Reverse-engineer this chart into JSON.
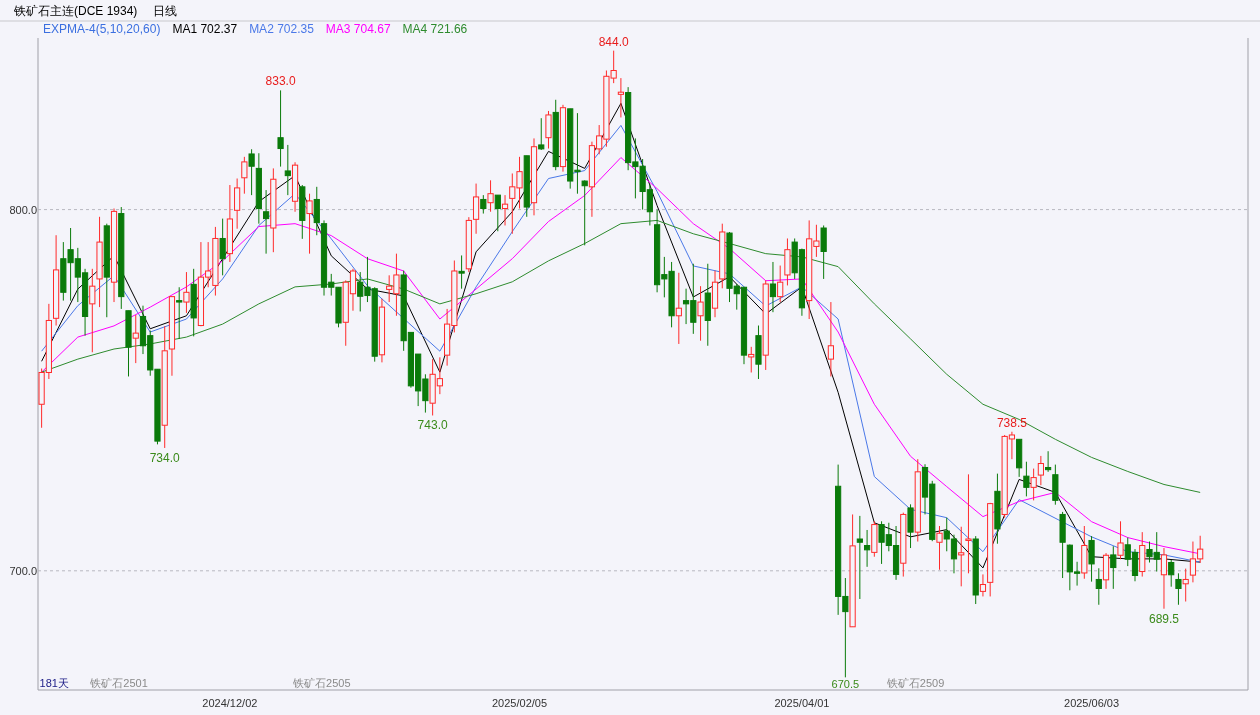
{
  "chart_data": {
    "type": "candlestick",
    "title": "铁矿石主连(DCE 1934)",
    "subtitle": "日线",
    "legend_title": "EXPMA-4(5,10,20,60)",
    "legend": "top left",
    "grid": "y",
    "ylim": [
      667,
      847.5
    ],
    "yticks": [
      {
        "value": 700,
        "label": "700.0"
      },
      {
        "value": 800,
        "label": "800.0"
      }
    ],
    "categories": [
      null,
      null,
      null,
      null,
      null,
      null,
      null,
      null,
      null,
      null,
      null,
      null,
      null,
      null,
      null,
      null,
      null,
      null,
      null,
      null,
      null,
      null,
      null,
      null,
      null,
      null,
      "2024/12/02",
      null,
      null,
      null,
      null,
      null,
      null,
      null,
      null,
      null,
      null,
      null,
      null,
      null,
      null,
      null,
      null,
      null,
      null,
      null,
      null,
      null,
      null,
      null,
      null,
      null,
      null,
      null,
      null,
      null,
      null,
      null,
      null,
      null,
      null,
      null,
      null,
      null,
      null,
      null,
      "2025/02/05",
      null,
      null,
      null,
      null,
      null,
      null,
      null,
      null,
      null,
      null,
      null,
      null,
      null,
      null,
      null,
      null,
      null,
      null,
      null,
      null,
      null,
      null,
      null,
      null,
      null,
      null,
      null,
      null,
      null,
      null,
      null,
      null,
      null,
      null,
      null,
      null,
      null,
      null,
      "2025/04/01",
      null,
      null,
      null,
      null,
      null,
      null,
      null,
      null,
      null,
      null,
      null,
      null,
      null,
      null,
      null,
      null,
      null,
      null,
      null,
      null,
      null,
      null,
      null,
      null,
      null,
      null,
      null,
      null,
      null,
      null,
      null,
      null,
      null,
      null,
      null,
      null,
      null,
      null,
      null,
      "2025/06/03",
      null,
      null,
      null,
      null,
      null,
      null,
      null,
      null,
      null,
      null,
      null,
      null,
      null,
      null,
      null
    ],
    "ohlc": [
      [
        746.1,
        756,
        739.6,
        754.9
      ],
      [
        754.9,
        773.9,
        753.1,
        769.3
      ],
      [
        769.9,
        792.9,
        767.9,
        783.3
      ],
      [
        786.4,
        791,
        774.8,
        777.1
      ],
      [
        788.9,
        794.9,
        774.8,
        785.3
      ],
      [
        786.4,
        789.4,
        774.4,
        781.3
      ],
      [
        782.5,
        783.6,
        765.1,
        770.4
      ],
      [
        773.9,
        783.6,
        760.5,
        778.8
      ],
      [
        780.8,
        798,
        773,
        791
      ],
      [
        795.5,
        796.1,
        770.2,
        781.3
      ],
      [
        779.9,
        800.3,
        774.4,
        799.5
      ],
      [
        798.9,
        800.7,
        772.5,
        775.9
      ],
      [
        772,
        772,
        753.8,
        761.9
      ],
      [
        764.4,
        770.8,
        757.5,
        765.8
      ],
      [
        770.4,
        773.4,
        760,
        762.3
      ],
      [
        765.1,
        766.5,
        754,
        755.6
      ],
      [
        755.8,
        755.8,
        735,
        735.9
      ],
      [
        740.3,
        767.7,
        734,
        760.9
      ],
      [
        761.4,
        775.9,
        754,
        775.9
      ],
      [
        774.8,
        778.5,
        764.2,
        774.4
      ],
      [
        774.4,
        782.7,
        771.4,
        777.1
      ],
      [
        779.3,
        783.6,
        764.9,
        770
      ],
      [
        767.9,
        791,
        767.7,
        781.3
      ],
      [
        781.3,
        791,
        778.5,
        783
      ],
      [
        779,
        795.2,
        776.2,
        792
      ],
      [
        792,
        797.5,
        781.8,
        786.4
      ],
      [
        787.8,
        806.8,
        785.5,
        797.4
      ],
      [
        799.8,
        808.6,
        794.7,
        806
      ],
      [
        808.8,
        814.6,
        804.4,
        813.2
      ],
      [
        815.4,
        816.7,
        804,
        812
      ],
      [
        811.4,
        815.6,
        796.1,
        800.3
      ],
      [
        799.4,
        805.4,
        787.8,
        797.5
      ],
      [
        794.9,
        811.4,
        788.2,
        808.4
      ],
      [
        819.9,
        833,
        811.9,
        816.9
      ],
      [
        810.7,
        817.9,
        804,
        809.4
      ],
      [
        802.3,
        813.1,
        799.4,
        812.3
      ],
      [
        806.3,
        806.8,
        791.9,
        797
      ],
      [
        798.9,
        804.4,
        787.8,
        802.4
      ],
      [
        802.8,
        806.3,
        792.9,
        796.4
      ],
      [
        796.1,
        797,
        776.2,
        778.5
      ],
      [
        779.9,
        782.2,
        776.2,
        778.5
      ],
      [
        778.5,
        778.5,
        767.4,
        768.6
      ],
      [
        768.8,
        780.4,
        762.3,
        779.9
      ],
      [
        776.7,
        783.6,
        772,
        783
      ],
      [
        779.9,
        782.7,
        771.8,
        776
      ],
      [
        778.5,
        786.9,
        774.4,
        776.2
      ],
      [
        778.1,
        778.5,
        757.9,
        759.4
      ],
      [
        759.8,
        775.3,
        757.7,
        773
      ],
      [
        777.9,
        781.8,
        774.4,
        778.8
      ],
      [
        776.7,
        787.8,
        770.6,
        781.9
      ],
      [
        781.9,
        783.1,
        760.9,
        763.7
      ],
      [
        766,
        766,
        750.7,
        751.2
      ],
      [
        760,
        760,
        745.6,
        749.8
      ],
      [
        753.1,
        754.4,
        743.8,
        747.1
      ],
      [
        746.4,
        758.6,
        743,
        754.4
      ],
      [
        751.2,
        759.1,
        748.9,
        753.2
      ],
      [
        759.7,
        772.5,
        756.8,
        768.3
      ],
      [
        767.9,
        785.9,
        766,
        783
      ],
      [
        782.9,
        787.3,
        778.1,
        782.4
      ],
      [
        783.6,
        797.9,
        782.7,
        797
      ],
      [
        797.3,
        807.2,
        793.3,
        803.5
      ],
      [
        802.8,
        804,
        798.9,
        800.3
      ],
      [
        801.9,
        808.1,
        799.4,
        804.4
      ],
      [
        804,
        804,
        794,
        800.3
      ],
      [
        800.3,
        804,
        795.6,
        801.5
      ],
      [
        803.1,
        810,
        793.3,
        806.3
      ],
      [
        806,
        814.6,
        800.3,
        810.5
      ],
      [
        814.9,
        814.9,
        798,
        800.7
      ],
      [
        801.9,
        819.7,
        798.4,
        817.4
      ],
      [
        817.9,
        825.3,
        816.5,
        816.8
      ],
      [
        819.9,
        827.3,
        816.9,
        826.2
      ],
      [
        826.9,
        830.4,
        810.9,
        811.9
      ],
      [
        811.9,
        829,
        810.5,
        828.2
      ],
      [
        827.9,
        827.9,
        805.8,
        807.9
      ],
      [
        810.9,
        826.7,
        804.4,
        810.5
      ],
      [
        807.9,
        808.1,
        790.1,
        806.6
      ],
      [
        806.3,
        818.8,
        798,
        817.7
      ],
      [
        816.8,
        823.4,
        815.3,
        820.4
      ],
      [
        819.5,
        838.5,
        817.4,
        836.9
      ],
      [
        836.4,
        844,
        835,
        838.5
      ],
      [
        831.9,
        836.4,
        825.5,
        832.5
      ],
      [
        832.4,
        833.9,
        810.9,
        813
      ],
      [
        813.2,
        819.7,
        803.1,
        811.9
      ],
      [
        812,
        814,
        800,
        805
      ],
      [
        805.5,
        807,
        795.6,
        799.4
      ],
      [
        795.8,
        800,
        777.1,
        779.2
      ],
      [
        782,
        786.9,
        775.7,
        780.8
      ],
      [
        782.9,
        785.5,
        767.4,
        770.6
      ],
      [
        770.6,
        782.5,
        762.8,
        772.7
      ],
      [
        774.8,
        778.1,
        768.3,
        773.9
      ],
      [
        774.8,
        785,
        765.6,
        768.8
      ],
      [
        770.6,
        778.8,
        763.7,
        774.4
      ],
      [
        776.9,
        785,
        762.3,
        769.3
      ],
      [
        772.7,
        783.1,
        770.2,
        779.9
      ],
      [
        780.8,
        796.1,
        778.2,
        793.8
      ],
      [
        793.5,
        793.8,
        774.4,
        778.2
      ],
      [
        778.8,
        779.4,
        772.3,
        776.7
      ],
      [
        778.5,
        778.5,
        757.2,
        759.7
      ],
      [
        759.2,
        762,
        754.9,
        759.9
      ],
      [
        765.1,
        767.9,
        753.1,
        757.2
      ],
      [
        759.7,
        780.4,
        755.6,
        779.4
      ],
      [
        779.4,
        785.5,
        771.6,
        775.9
      ],
      [
        775.9,
        784.5,
        774.4,
        779.9
      ],
      [
        781.9,
        792,
        779,
        788.9
      ],
      [
        791,
        792,
        780.8,
        782.5
      ],
      [
        788.9,
        789.2,
        770.6,
        772.8
      ],
      [
        774.8,
        797,
        769.7,
        791.9
      ],
      [
        789.8,
        795.8,
        786.9,
        791.3
      ],
      [
        794.9,
        795.6,
        780.8,
        788.4
      ],
      [
        758.6,
        774.4,
        753.8,
        762.3
      ],
      [
        723.4,
        729.4,
        687.8,
        692.9
      ],
      [
        692.9,
        698,
        670.5,
        688.7
      ],
      [
        684.5,
        715.6,
        684.5,
        706.9
      ],
      [
        708.8,
        715.2,
        692.2,
        707.9
      ],
      [
        707,
        711.3,
        701.1,
        705.8
      ],
      [
        705.1,
        713.7,
        703.9,
        712.8
      ],
      [
        712.8,
        713.7,
        701.9,
        707.9
      ],
      [
        710,
        713.3,
        705.4,
        707
      ],
      [
        707,
        712.4,
        697.5,
        699
      ],
      [
        702.1,
        716.1,
        698.4,
        715.6
      ],
      [
        717.4,
        718.4,
        706.3,
        710.7
      ],
      [
        710.7,
        730.9,
        708.1,
        727.4
      ],
      [
        728.6,
        729.5,
        715.6,
        720.4
      ],
      [
        724,
        724.9,
        708.2,
        708.7
      ],
      [
        707.9,
        712.4,
        700.3,
        710.4
      ],
      [
        711,
        714.7,
        705.4,
        708.8
      ],
      [
        708.8,
        710,
        699.3,
        703.3
      ],
      [
        704.4,
        712.2,
        695.7,
        705
      ],
      [
        708.4,
        726.7,
        699.3,
        708.8
      ],
      [
        708.8,
        709.6,
        690.8,
        693.3
      ],
      [
        694.3,
        699,
        692.9,
        696.2
      ],
      [
        696.8,
        718.8,
        692.9,
        718.6
      ],
      [
        722,
        726.9,
        707.5,
        711.6
      ],
      [
        715.6,
        737.6,
        714.7,
        737.2
      ],
      [
        736.5,
        738.5,
        730.9,
        737.6
      ],
      [
        736.4,
        736.4,
        726,
        728.5
      ],
      [
        726.2,
        730.2,
        720.6,
        723.1
      ],
      [
        723.1,
        728.3,
        719.5,
        725.8
      ],
      [
        726.5,
        731.8,
        723.7,
        729.7
      ],
      [
        728.6,
        733.1,
        727.4,
        728
      ],
      [
        726.6,
        729.4,
        718.3,
        719.5
      ],
      [
        715.6,
        716.3,
        698,
        707.9
      ],
      [
        707.1,
        707.3,
        694.6,
        699.7
      ],
      [
        699.7,
        702.5,
        695.9,
        699.3
      ],
      [
        699.4,
        712.4,
        697.8,
        707
      ],
      [
        708.4,
        709.6,
        697,
        701.9
      ],
      [
        697.6,
        700.7,
        690.6,
        695.1
      ],
      [
        697.5,
        704.9,
        695,
        704.3
      ],
      [
        704.4,
        706.8,
        695,
        700.9
      ],
      [
        704.3,
        713.7,
        703.2,
        707.7
      ],
      [
        707.2,
        709.2,
        701.3,
        703.2
      ],
      [
        705.1,
        706,
        697.1,
        698.7
      ],
      [
        699.8,
        710.7,
        698.4,
        707
      ],
      [
        705.9,
        708.1,
        702.3,
        703.9
      ],
      [
        705.1,
        710.7,
        699.8,
        703.2
      ],
      [
        698.9,
        706.3,
        689.5,
        704.4
      ],
      [
        702.3,
        703,
        695.6,
        698.9
      ],
      [
        697.6,
        699.3,
        690.6,
        695.1
      ],
      [
        696.4,
        700.6,
        691.5,
        697.6
      ],
      [
        698.8,
        708.1,
        696.8,
        703.3
      ],
      [
        703.3,
        709.7,
        702.2,
        706
      ]
    ],
    "series": [
      {
        "name": "MA1 702.37",
        "type": "line",
        "color": "#000000",
        "values": [
          758,
          null,
          null,
          null,
          null,
          778,
          null,
          null,
          null,
          null,
          787.2,
          null,
          null,
          null,
          null,
          767,
          null,
          null,
          null,
          null,
          770.6,
          null,
          null,
          null,
          null,
          786.4,
          null,
          null,
          null,
          null,
          802.2,
          null,
          null,
          null,
          null,
          809.4,
          null,
          null,
          null,
          null,
          787.2,
          null,
          null,
          null,
          null,
          778,
          null,
          null,
          null,
          null,
          776.1,
          null,
          null,
          null,
          null,
          755,
          null,
          null,
          null,
          null,
          788.3,
          null,
          null,
          null,
          null,
          799.4,
          null,
          null,
          null,
          null,
          816.1,
          null,
          null,
          null,
          null,
          811.4,
          null,
          null,
          null,
          null,
          829.4,
          null,
          null,
          null,
          null,
          801.1,
          null,
          null,
          null,
          null,
          775.8,
          null,
          null,
          null,
          null,
          781.4,
          null,
          null,
          null,
          null,
          771.1,
          null,
          null,
          null,
          null,
          778.6,
          null,
          null,
          null,
          null,
          749.4,
          null,
          null,
          null,
          null,
          713.3,
          null,
          null,
          null,
          null,
          709.4,
          null,
          null,
          null,
          null,
          711.4,
          null,
          null,
          null,
          null,
          700.8,
          null,
          null,
          null,
          null,
          725.3,
          null,
          null,
          null,
          null,
          721.7,
          null,
          null,
          null,
          null,
          703.9,
          null,
          null,
          null,
          null,
          703.3,
          null,
          null,
          null,
          null,
          703.3,
          null,
          null,
          null,
          null,
          702.4
        ]
      },
      {
        "name": "MA2 702.35",
        "type": "line",
        "color": "#4a78e8",
        "values": [
          760.8,
          null,
          null,
          null,
          null,
          773.4,
          null,
          null,
          null,
          null,
          781.7,
          null,
          null,
          null,
          null,
          766.1,
          null,
          null,
          null,
          null,
          769.7,
          null,
          null,
          null,
          null,
          780.8,
          null,
          null,
          null,
          null,
          795.6,
          null,
          null,
          null,
          null,
          804.4,
          null,
          null,
          null,
          null,
          791.9,
          null,
          null,
          null,
          null,
          778.9,
          null,
          null,
          null,
          null,
          null,
          null,
          null,
          null,
          null,
          760.8,
          null,
          null,
          null,
          null,
          778.6,
          null,
          null,
          null,
          null,
          793.9,
          null,
          null,
          null,
          null,
          808.6,
          null,
          null,
          null,
          null,
          810.8,
          null,
          null,
          null,
          null,
          823.3,
          null,
          null,
          null,
          null,
          805,
          null,
          null,
          null,
          null,
          784.4,
          null,
          null,
          null,
          null,
          782.2,
          null,
          null,
          null,
          null,
          773.3,
          null,
          null,
          null,
          null,
          778.6,
          null,
          null,
          null,
          null,
          769.7,
          null,
          null,
          null,
          null,
          726.1,
          null,
          null,
          null,
          null,
          717,
          null,
          null,
          null,
          null,
          714.7,
          null,
          null,
          null,
          null,
          705.3,
          null,
          null,
          null,
          null,
          719.7,
          null,
          null,
          null,
          null,
          null,
          null,
          null,
          null,
          null,
          709.4,
          null,
          null,
          null,
          null,
          705.3,
          null,
          null,
          null,
          null,
          704.4,
          null,
          null,
          null,
          null,
          702.4
        ]
      },
      {
        "name": "MA3 704.67",
        "type": "line",
        "color": "#ff00ff",
        "values": [
          755,
          null,
          null,
          null,
          null,
          764.7,
          null,
          null,
          null,
          null,
          767.8,
          null,
          null,
          null,
          null,
          773,
          null,
          null,
          null,
          null,
          778.6,
          null,
          null,
          null,
          null,
          785.8,
          null,
          null,
          null,
          null,
          795.3,
          null,
          null,
          null,
          null,
          796.1,
          null,
          null,
          null,
          null,
          792.8,
          null,
          null,
          null,
          null,
          786.4,
          null,
          null,
          null,
          null,
          783,
          null,
          null,
          null,
          null,
          769.7,
          null,
          null,
          null,
          null,
          778,
          null,
          null,
          null,
          null,
          786.4,
          null,
          null,
          null,
          null,
          796.7,
          null,
          null,
          null,
          null,
          803.9,
          null,
          null,
          null,
          null,
          814.4,
          null,
          null,
          null,
          null,
          805.8,
          null,
          null,
          null,
          null,
          796.1,
          null,
          null,
          null,
          null,
          789.2,
          null,
          null,
          null,
          null,
          780.3,
          null,
          null,
          null,
          null,
          780.8,
          null,
          null,
          null,
          null,
          766.1,
          null,
          null,
          null,
          null,
          746.1,
          null,
          null,
          null,
          null,
          731.7,
          null,
          null,
          null,
          null,
          723.3,
          null,
          null,
          null,
          null,
          715,
          null,
          null,
          null,
          null,
          719.2,
          null,
          null,
          null,
          null,
          721.7,
          null,
          null,
          null,
          null,
          713.6,
          null,
          null,
          null,
          null,
          709.2,
          null,
          null,
          null,
          null,
          706.7,
          null,
          null,
          null,
          null,
          704.7
        ]
      },
      {
        "name": "MA4 721.66",
        "type": "line",
        "color": "#2e8b2e",
        "values": [
          755,
          null,
          null,
          null,
          null,
          758.6,
          null,
          null,
          null,
          null,
          761.4,
          null,
          null,
          null,
          null,
          762.8,
          null,
          null,
          null,
          null,
          764.7,
          null,
          null,
          null,
          null,
          768.3,
          null,
          null,
          null,
          null,
          773.9,
          null,
          null,
          null,
          null,
          778.6,
          null,
          null,
          null,
          null,
          779.4,
          null,
          null,
          null,
          null,
          780.8,
          null,
          null,
          null,
          null,
          778,
          null,
          null,
          null,
          null,
          773.9,
          null,
          null,
          null,
          null,
          776.7,
          null,
          null,
          null,
          null,
          780,
          null,
          null,
          null,
          null,
          785.8,
          null,
          null,
          null,
          null,
          790.6,
          null,
          null,
          null,
          null,
          796.1,
          null,
          null,
          null,
          null,
          797,
          null,
          null,
          null,
          null,
          793.3,
          null,
          null,
          null,
          null,
          790.6,
          null,
          null,
          null,
          null,
          787.8,
          null,
          null,
          null,
          null,
          786.9,
          null,
          null,
          null,
          null,
          784.2,
          null,
          null,
          null,
          null,
          773.9,
          null,
          null,
          null,
          null,
          764.2,
          null,
          null,
          null,
          null,
          754.4,
          null,
          null,
          null,
          null,
          746.1,
          null,
          null,
          null,
          null,
          741.9,
          null,
          null,
          null,
          null,
          736.4,
          null,
          null,
          null,
          null,
          731.4,
          null,
          null,
          null,
          null,
          727.5,
          null,
          null,
          null,
          null,
          723.9,
          null,
          null,
          null,
          null,
          721.7
        ]
      }
    ],
    "annotations": [
      {
        "text": "833.0",
        "y": 833
      },
      {
        "text": "844.0",
        "y": 844
      },
      {
        "text": "734.0",
        "y": 734
      },
      {
        "text": "743.0",
        "y": 743
      },
      {
        "text": "738.5",
        "y": 738.5
      },
      {
        "text": "670.5",
        "y": 670.5
      },
      {
        "text": "689.5",
        "y": 689.5
      },
      "181天",
      "铁矿石2501",
      "铁矿石2505",
      "铁矿石2509"
    ]
  }
}
